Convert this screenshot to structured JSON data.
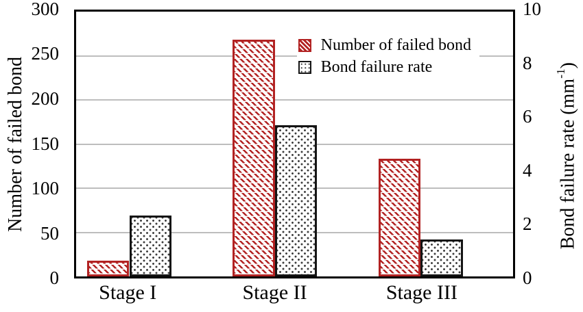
{
  "chart_data": {
    "type": "bar",
    "categories": [
      "Stage I",
      "Stage II",
      "Stage III"
    ],
    "series": [
      {
        "name": "Number of failed bond",
        "axis": "left",
        "values": [
          18,
          268,
          133
        ],
        "color": "#b22222",
        "pattern": "diagonal-hatch"
      },
      {
        "name": "Bond failure rate",
        "axis": "right",
        "values": [
          2.3,
          5.7,
          1.4
        ],
        "color": "#141414",
        "pattern": "dot-grid"
      }
    ],
    "left_axis": {
      "label": "Number of failed bond",
      "min": 0,
      "max": 300,
      "ticks": [
        0,
        50,
        100,
        150,
        200,
        250,
        300
      ]
    },
    "right_axis": {
      "label_prefix": "Bond failure rate (mm",
      "label_sup": "-1",
      "label_suffix": ")",
      "min": 0,
      "max": 10,
      "ticks": [
        0,
        2,
        4,
        6,
        8,
        10
      ]
    },
    "gridlines": [
      50,
      100,
      150,
      200,
      250
    ],
    "legend": {
      "position": "top-right-inside",
      "entries": [
        "Number of failed bond",
        "Bond failure rate"
      ]
    },
    "frame_color": "#000000",
    "gridline_color": "#bdbdbd",
    "grid": "horizontal-only"
  }
}
